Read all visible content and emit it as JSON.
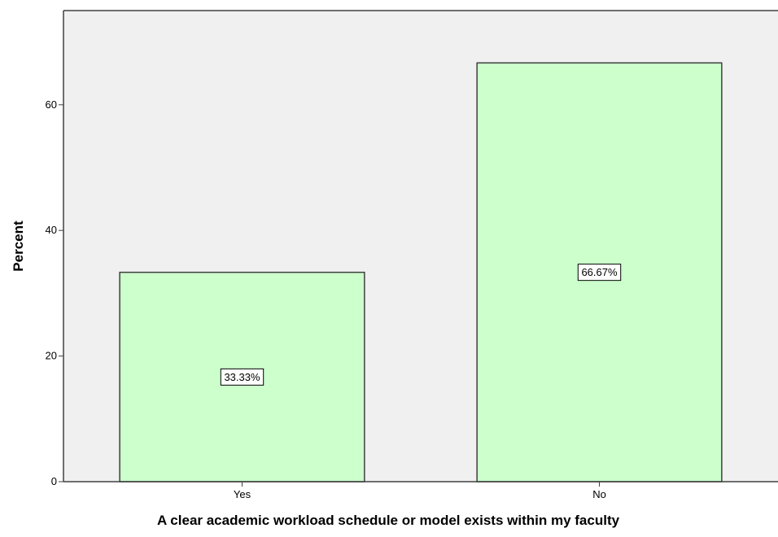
{
  "chart_data": {
    "type": "bar",
    "categories": [
      "Yes",
      "No"
    ],
    "values": [
      33.33,
      66.67
    ],
    "data_labels": [
      "33.33%",
      "66.67%"
    ],
    "title": "",
    "xlabel": "A clear academic workload schedule or model exists within my faculty",
    "ylabel": "Percent",
    "ylim": [
      0,
      75
    ],
    "yticks": [
      0,
      20,
      40,
      60
    ],
    "grid": false,
    "legend": "none"
  },
  "colors": {
    "plot_background": "#f0f0f0",
    "bar_fill": "#ccffcc",
    "bar_stroke": "#404040",
    "axis": "#404040"
  }
}
